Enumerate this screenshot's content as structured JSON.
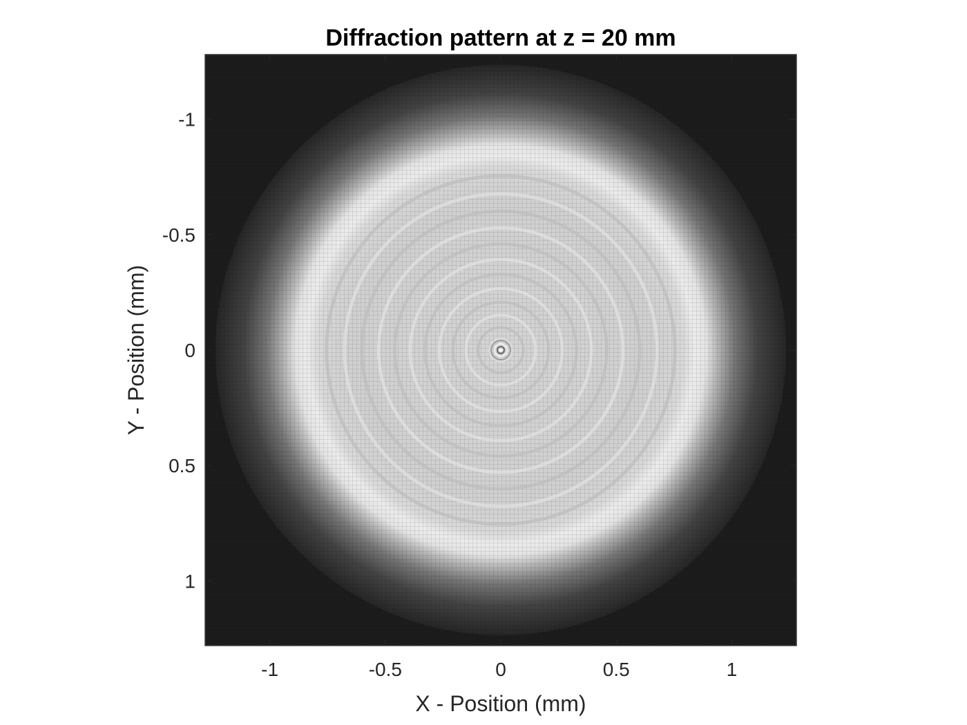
{
  "chart_data": {
    "type": "heatmap",
    "title": "Diffraction pattern at z = 20 mm",
    "xlabel": "X - Position (mm)",
    "ylabel": "Y - Position (mm)",
    "xlim": [
      -1.28,
      1.28
    ],
    "ylim": [
      -1.28,
      1.28
    ],
    "y_reversed": true,
    "x_ticks": [
      {
        "value": -1,
        "label": "-1"
      },
      {
        "value": -0.5,
        "label": "-0.5"
      },
      {
        "value": 0,
        "label": "0"
      },
      {
        "value": 0.5,
        "label": "0.5"
      },
      {
        "value": 1,
        "label": "1"
      }
    ],
    "y_ticks": [
      {
        "value": -1,
        "label": "-1"
      },
      {
        "value": -0.5,
        "label": "-0.5"
      },
      {
        "value": 0,
        "label": "0"
      },
      {
        "value": 0.5,
        "label": "0.5"
      },
      {
        "value": 1,
        "label": "1"
      }
    ],
    "colormap": "gray",
    "grid": false,
    "pattern": {
      "center": [
        0,
        0
      ],
      "bright_disc_radius_mm": 0.87,
      "edge_ring_radius_mm": 0.79,
      "inner_intensity": 0.82,
      "outer_intensity": 0.12
    }
  }
}
